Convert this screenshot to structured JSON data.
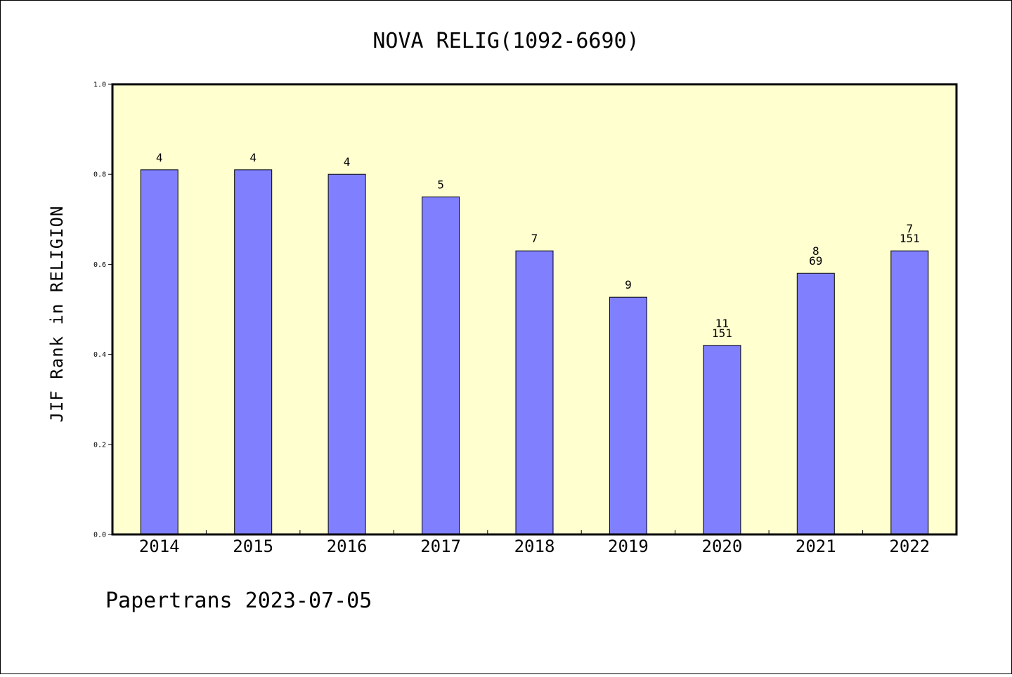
{
  "chart_data": {
    "type": "bar",
    "title": "NOVA RELIG(1092-6690)",
    "xlabel": "",
    "ylabel": "JIF Rank in RELIGION",
    "ylim": [
      0,
      1.0
    ],
    "yticks": [
      "0.0",
      "0.2",
      "0.4",
      "0.6",
      "0.8",
      "1.0"
    ],
    "categories": [
      "2014",
      "2015",
      "2016",
      "2017",
      "2018",
      "2019",
      "2020",
      "2021",
      "2022"
    ],
    "values": [
      0.81,
      0.81,
      0.8,
      0.75,
      0.63,
      0.527,
      0.42,
      0.58,
      0.63
    ],
    "labels": [
      [
        "4"
      ],
      [
        "4"
      ],
      [
        "4"
      ],
      [
        "5"
      ],
      [
        "7"
      ],
      [
        "9"
      ],
      [
        "11",
        "151"
      ],
      [
        "8",
        "69"
      ],
      [
        "7",
        "151"
      ]
    ],
    "grid": false,
    "colors": {
      "bar": "#8080ff",
      "plot_bg": "#ffffd0",
      "edge": "#000000"
    }
  },
  "footer": "Papertrans 2023-07-05"
}
